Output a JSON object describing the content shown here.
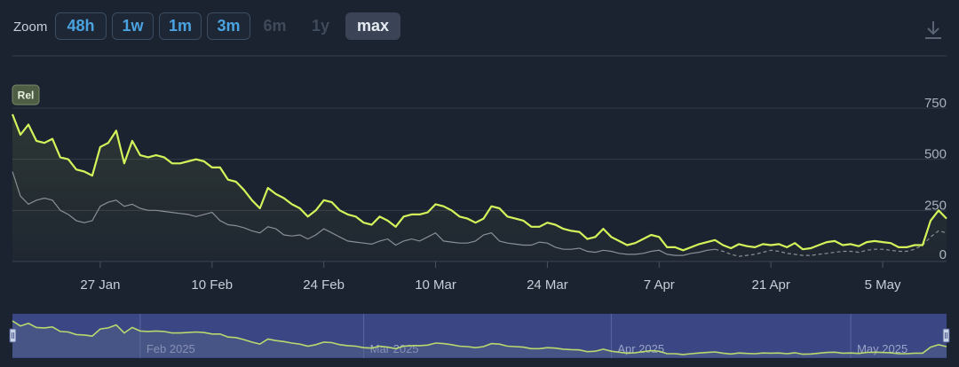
{
  "zoom": {
    "label": "Zoom",
    "buttons": [
      {
        "label": "48h",
        "state": "normal"
      },
      {
        "label": "1w",
        "state": "normal"
      },
      {
        "label": "1m",
        "state": "normal"
      },
      {
        "label": "3m",
        "state": "normal"
      },
      {
        "label": "6m",
        "state": "disabled"
      },
      {
        "label": "1y",
        "state": "disabled"
      },
      {
        "label": "max",
        "state": "active"
      }
    ]
  },
  "download_icon": "download-icon",
  "colors": {
    "background": "#1b2230",
    "primary_line": "#d4f35a",
    "secondary_line": "#8a8f96",
    "button_text": "#4aa3e0",
    "navigator_fill": "#3b4785"
  },
  "chart_data": {
    "type": "line",
    "badge": "Rel",
    "x_start": "2025-01-16",
    "x_end": "2025-05-12",
    "ylim": [
      0,
      750
    ],
    "y_ticks": [
      "750",
      "500",
      "250",
      "0"
    ],
    "x_ticks": [
      {
        "date": "2025-01-27",
        "label": "27 Jan"
      },
      {
        "date": "2025-02-10",
        "label": "10 Feb"
      },
      {
        "date": "2025-02-24",
        "label": "24 Feb"
      },
      {
        "date": "2025-03-10",
        "label": "10 Mar"
      },
      {
        "date": "2025-03-24",
        "label": "24 Mar"
      },
      {
        "date": "2025-04-07",
        "label": "7 Apr"
      },
      {
        "date": "2025-04-21",
        "label": "21 Apr"
      },
      {
        "date": "2025-05-05",
        "label": "5 May"
      }
    ],
    "navigator_ticks": [
      {
        "date": "2025-02-01",
        "label": "Feb 2025"
      },
      {
        "date": "2025-03-01",
        "label": "Mar 2025"
      },
      {
        "date": "2025-04-01",
        "label": "Apr 2025"
      },
      {
        "date": "2025-05-01",
        "label": "May 2025"
      }
    ],
    "grid": true,
    "series": [
      {
        "name": "",
        "style": "primary",
        "points": [
          [
            "2025-01-16",
            720
          ],
          [
            "2025-01-17",
            620
          ],
          [
            "2025-01-18",
            670
          ],
          [
            "2025-01-19",
            590
          ],
          [
            "2025-01-20",
            580
          ],
          [
            "2025-01-21",
            600
          ],
          [
            "2025-01-22",
            510
          ],
          [
            "2025-01-23",
            500
          ],
          [
            "2025-01-24",
            450
          ],
          [
            "2025-01-25",
            440
          ],
          [
            "2025-01-26",
            420
          ],
          [
            "2025-01-27",
            560
          ],
          [
            "2025-01-28",
            580
          ],
          [
            "2025-01-29",
            640
          ],
          [
            "2025-01-30",
            480
          ],
          [
            "2025-01-31",
            590
          ],
          [
            "2025-02-01",
            520
          ],
          [
            "2025-02-02",
            510
          ],
          [
            "2025-02-03",
            520
          ],
          [
            "2025-02-04",
            510
          ],
          [
            "2025-02-05",
            480
          ],
          [
            "2025-02-06",
            480
          ],
          [
            "2025-02-07",
            490
          ],
          [
            "2025-02-08",
            500
          ],
          [
            "2025-02-09",
            490
          ],
          [
            "2025-02-10",
            460
          ],
          [
            "2025-02-11",
            460
          ],
          [
            "2025-02-12",
            400
          ],
          [
            "2025-02-13",
            390
          ],
          [
            "2025-02-14",
            350
          ],
          [
            "2025-02-15",
            300
          ],
          [
            "2025-02-16",
            260
          ],
          [
            "2025-02-17",
            360
          ],
          [
            "2025-02-18",
            330
          ],
          [
            "2025-02-19",
            310
          ],
          [
            "2025-02-20",
            280
          ],
          [
            "2025-02-21",
            260
          ],
          [
            "2025-02-22",
            220
          ],
          [
            "2025-02-23",
            250
          ],
          [
            "2025-02-24",
            300
          ],
          [
            "2025-02-25",
            290
          ],
          [
            "2025-02-26",
            250
          ],
          [
            "2025-02-27",
            230
          ],
          [
            "2025-02-28",
            220
          ],
          [
            "2025-03-01",
            190
          ],
          [
            "2025-03-02",
            180
          ],
          [
            "2025-03-03",
            220
          ],
          [
            "2025-03-04",
            200
          ],
          [
            "2025-03-05",
            170
          ],
          [
            "2025-03-06",
            220
          ],
          [
            "2025-03-07",
            230
          ],
          [
            "2025-03-08",
            230
          ],
          [
            "2025-03-09",
            240
          ],
          [
            "2025-03-10",
            280
          ],
          [
            "2025-03-11",
            270
          ],
          [
            "2025-03-12",
            250
          ],
          [
            "2025-03-13",
            220
          ],
          [
            "2025-03-14",
            210
          ],
          [
            "2025-03-15",
            190
          ],
          [
            "2025-03-16",
            210
          ],
          [
            "2025-03-17",
            270
          ],
          [
            "2025-03-18",
            260
          ],
          [
            "2025-03-19",
            220
          ],
          [
            "2025-03-20",
            210
          ],
          [
            "2025-03-21",
            200
          ],
          [
            "2025-03-22",
            170
          ],
          [
            "2025-03-23",
            170
          ],
          [
            "2025-03-24",
            190
          ],
          [
            "2025-03-25",
            180
          ],
          [
            "2025-03-26",
            160
          ],
          [
            "2025-03-27",
            150
          ],
          [
            "2025-03-28",
            145
          ],
          [
            "2025-03-29",
            110
          ],
          [
            "2025-03-30",
            120
          ],
          [
            "2025-03-31",
            160
          ],
          [
            "2025-04-01",
            120
          ],
          [
            "2025-04-02",
            100
          ],
          [
            "2025-04-03",
            80
          ],
          [
            "2025-04-04",
            90
          ],
          [
            "2025-04-05",
            110
          ],
          [
            "2025-04-06",
            130
          ],
          [
            "2025-04-07",
            120
          ],
          [
            "2025-04-08",
            70
          ],
          [
            "2025-04-09",
            70
          ],
          [
            "2025-04-10",
            55
          ],
          [
            "2025-04-11",
            70
          ],
          [
            "2025-04-12",
            85
          ],
          [
            "2025-04-13",
            95
          ],
          [
            "2025-04-14",
            105
          ],
          [
            "2025-04-15",
            80
          ],
          [
            "2025-04-16",
            65
          ],
          [
            "2025-04-17",
            85
          ],
          [
            "2025-04-18",
            75
          ],
          [
            "2025-04-19",
            70
          ],
          [
            "2025-04-20",
            85
          ],
          [
            "2025-04-21",
            80
          ],
          [
            "2025-04-22",
            85
          ],
          [
            "2025-04-23",
            70
          ],
          [
            "2025-04-24",
            90
          ],
          [
            "2025-04-25",
            60
          ],
          [
            "2025-04-26",
            65
          ],
          [
            "2025-04-27",
            80
          ],
          [
            "2025-04-28",
            95
          ],
          [
            "2025-04-29",
            100
          ],
          [
            "2025-04-30",
            80
          ],
          [
            "2025-05-01",
            85
          ],
          [
            "2025-05-02",
            75
          ],
          [
            "2025-05-03",
            95
          ],
          [
            "2025-05-04",
            100
          ],
          [
            "2025-05-05",
            95
          ],
          [
            "2025-05-06",
            90
          ],
          [
            "2025-05-07",
            70
          ],
          [
            "2025-05-08",
            70
          ],
          [
            "2025-05-09",
            80
          ],
          [
            "2025-05-10",
            80
          ],
          [
            "2025-05-11",
            200
          ],
          [
            "2025-05-12",
            250
          ],
          [
            "2025-05-13",
            210
          ]
        ]
      },
      {
        "name": "",
        "style": "secondary",
        "points": [
          [
            "2025-01-16",
            440
          ],
          [
            "2025-01-17",
            320
          ],
          [
            "2025-01-18",
            280
          ],
          [
            "2025-01-19",
            300
          ],
          [
            "2025-01-20",
            310
          ],
          [
            "2025-01-21",
            300
          ],
          [
            "2025-01-22",
            250
          ],
          [
            "2025-01-23",
            230
          ],
          [
            "2025-01-24",
            200
          ],
          [
            "2025-01-25",
            190
          ],
          [
            "2025-01-26",
            200
          ],
          [
            "2025-01-27",
            270
          ],
          [
            "2025-01-28",
            290
          ],
          [
            "2025-01-29",
            300
          ],
          [
            "2025-01-30",
            270
          ],
          [
            "2025-01-31",
            280
          ],
          [
            "2025-02-01",
            260
          ],
          [
            "2025-02-02",
            250
          ],
          [
            "2025-02-03",
            250
          ],
          [
            "2025-02-04",
            245
          ],
          [
            "2025-02-05",
            240
          ],
          [
            "2025-02-06",
            235
          ],
          [
            "2025-02-07",
            230
          ],
          [
            "2025-02-08",
            220
          ],
          [
            "2025-02-09",
            230
          ],
          [
            "2025-02-10",
            240
          ],
          [
            "2025-02-11",
            200
          ],
          [
            "2025-02-12",
            180
          ],
          [
            "2025-02-13",
            175
          ],
          [
            "2025-02-14",
            165
          ],
          [
            "2025-02-15",
            150
          ],
          [
            "2025-02-16",
            140
          ],
          [
            "2025-02-17",
            170
          ],
          [
            "2025-02-18",
            160
          ],
          [
            "2025-02-19",
            130
          ],
          [
            "2025-02-20",
            125
          ],
          [
            "2025-02-21",
            130
          ],
          [
            "2025-02-22",
            110
          ],
          [
            "2025-02-23",
            130
          ],
          [
            "2025-02-24",
            160
          ],
          [
            "2025-02-25",
            140
          ],
          [
            "2025-02-26",
            120
          ],
          [
            "2025-02-27",
            100
          ],
          [
            "2025-02-28",
            95
          ],
          [
            "2025-03-01",
            90
          ],
          [
            "2025-03-02",
            85
          ],
          [
            "2025-03-03",
            100
          ],
          [
            "2025-03-04",
            110
          ],
          [
            "2025-03-05",
            80
          ],
          [
            "2025-03-06",
            100
          ],
          [
            "2025-03-07",
            110
          ],
          [
            "2025-03-08",
            100
          ],
          [
            "2025-03-09",
            120
          ],
          [
            "2025-03-10",
            140
          ],
          [
            "2025-03-11",
            100
          ],
          [
            "2025-03-12",
            95
          ],
          [
            "2025-03-13",
            90
          ],
          [
            "2025-03-14",
            90
          ],
          [
            "2025-03-15",
            100
          ],
          [
            "2025-03-16",
            130
          ],
          [
            "2025-03-17",
            140
          ],
          [
            "2025-03-18",
            100
          ],
          [
            "2025-03-19",
            90
          ],
          [
            "2025-03-20",
            85
          ],
          [
            "2025-03-21",
            80
          ],
          [
            "2025-03-22",
            80
          ],
          [
            "2025-03-23",
            95
          ],
          [
            "2025-03-24",
            90
          ],
          [
            "2025-03-25",
            70
          ],
          [
            "2025-03-26",
            60
          ],
          [
            "2025-03-27",
            60
          ],
          [
            "2025-03-28",
            65
          ],
          [
            "2025-03-29",
            50
          ],
          [
            "2025-03-30",
            45
          ],
          [
            "2025-03-31",
            55
          ],
          [
            "2025-04-01",
            50
          ],
          [
            "2025-04-02",
            40
          ],
          [
            "2025-04-03",
            35
          ],
          [
            "2025-04-04",
            35
          ],
          [
            "2025-04-05",
            40
          ],
          [
            "2025-04-06",
            50
          ],
          [
            "2025-04-07",
            55
          ],
          [
            "2025-04-08",
            35
          ],
          [
            "2025-04-09",
            30
          ],
          [
            "2025-04-10",
            30
          ],
          [
            "2025-04-11",
            40
          ],
          [
            "2025-04-12",
            45
          ],
          [
            "2025-04-13",
            55
          ],
          [
            "2025-04-14",
            60
          ],
          [
            "2025-04-15",
            50
          ],
          [
            "2025-04-16",
            35
          ],
          [
            "2025-04-17",
            25
          ],
          [
            "2025-04-18",
            30
          ],
          [
            "2025-04-19",
            35
          ],
          [
            "2025-04-20",
            45
          ],
          [
            "2025-04-21",
            55
          ],
          [
            "2025-04-22",
            50
          ],
          [
            "2025-04-23",
            40
          ],
          [
            "2025-04-24",
            35
          ],
          [
            "2025-04-25",
            30
          ],
          [
            "2025-04-26",
            30
          ],
          [
            "2025-04-27",
            35
          ],
          [
            "2025-04-28",
            40
          ],
          [
            "2025-04-29",
            45
          ],
          [
            "2025-04-30",
            50
          ],
          [
            "2025-05-01",
            50
          ],
          [
            "2025-05-02",
            45
          ],
          [
            "2025-05-03",
            55
          ],
          [
            "2025-05-04",
            60
          ],
          [
            "2025-05-05",
            60
          ],
          [
            "2025-05-06",
            55
          ],
          [
            "2025-05-07",
            50
          ],
          [
            "2025-05-08",
            50
          ],
          [
            "2025-05-09",
            60
          ],
          [
            "2025-05-10",
            80
          ],
          [
            "2025-05-11",
            120
          ],
          [
            "2025-05-12",
            150
          ],
          [
            "2025-05-13",
            140
          ]
        ]
      }
    ]
  }
}
